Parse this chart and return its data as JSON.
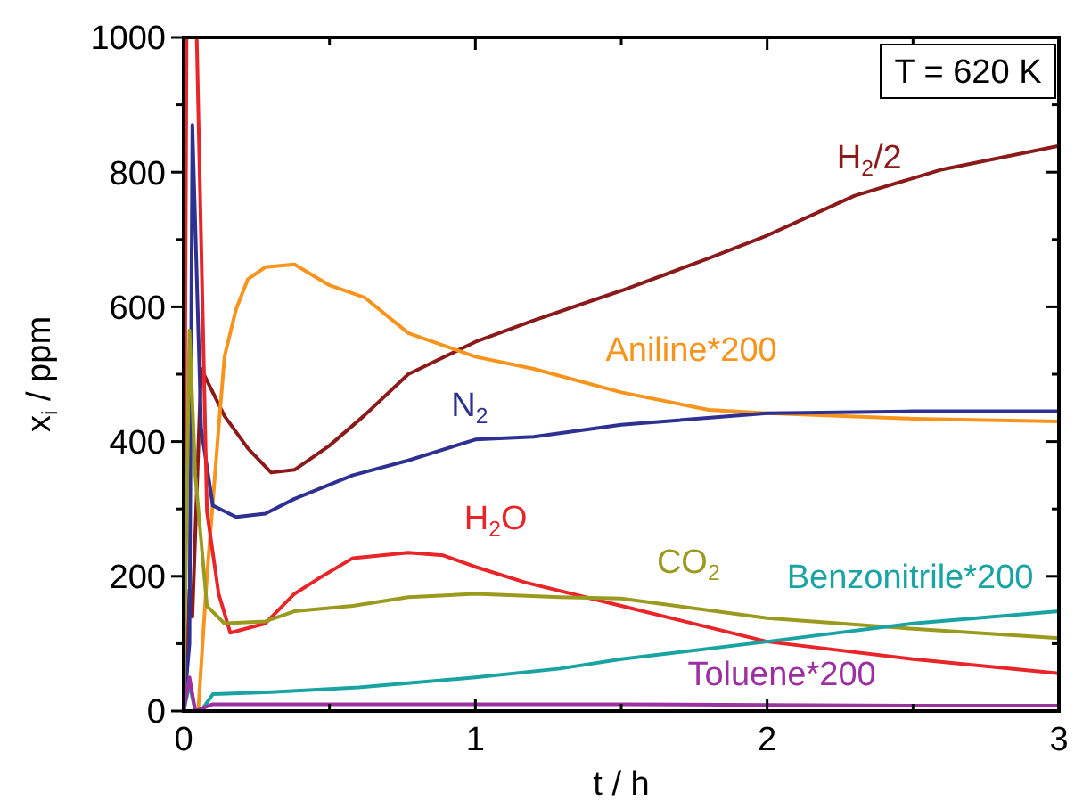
{
  "chart_data": {
    "type": "line",
    "xlabel": "t / h",
    "ylabel": "x$_{i}$ / ppm",
    "xlim": [
      0,
      3
    ],
    "xticks": [
      0,
      {
        "value": 0.5,
        "label": null
      },
      1,
      {
        "value": 1.5,
        "label": null
      },
      2,
      {
        "value": 2.5,
        "label": null
      },
      3
    ],
    "ylim": [
      0,
      1000
    ],
    "yticks": [
      0,
      {
        "value": 100,
        "label": null
      },
      200,
      {
        "value": 300,
        "label": null
      },
      400,
      {
        "value": 500,
        "label": null
      },
      600,
      {
        "value": 700,
        "label": null
      },
      800,
      {
        "value": 900,
        "label": null
      },
      1000
    ],
    "grid": false,
    "marker": "none",
    "line_style": "solid",
    "annotations": [
      "T = 620 K"
    ],
    "series": [
      {
        "name": "H$_{2}$/2",
        "color": "#8b1a1a",
        "x": [
          0,
          0.01,
          0.02,
          0.03,
          0.06,
          0.14,
          0.22,
          0.3,
          0.38,
          0.5,
          0.62,
          0.77,
          1.0,
          1.2,
          1.5,
          1.8,
          2.0,
          2.3,
          2.6,
          3.0
        ],
        "values": [
          0,
          60,
          180,
          140,
          508,
          438,
          390,
          354,
          358,
          394,
          439,
          500,
          548,
          580,
          624,
          672,
          706,
          765,
          804,
          839
        ]
      },
      {
        "name": "Aniline*200",
        "color": "#f7941d",
        "x": [
          0,
          0.05,
          0.08,
          0.12,
          0.14,
          0.18,
          0.22,
          0.28,
          0.38,
          0.5,
          0.62,
          0.77,
          1.0,
          1.2,
          1.5,
          1.8,
          2.0,
          2.5,
          3.0
        ],
        "values": [
          0,
          0,
          200,
          420,
          526,
          597,
          641,
          659,
          663,
          632,
          614,
          561,
          526,
          508,
          473,
          447,
          442,
          434,
          430
        ]
      },
      {
        "name": "N$_{2}$",
        "color": "#2e3192",
        "x": [
          0,
          0.02,
          0.03,
          0.06,
          0.1,
          0.18,
          0.28,
          0.38,
          0.58,
          0.77,
          1.0,
          1.2,
          1.5,
          2.0,
          2.5,
          3.0
        ],
        "values": [
          0,
          100,
          870,
          420,
          305,
          288,
          293,
          315,
          350,
          372,
          403,
          407,
          425,
          442,
          445,
          445
        ]
      },
      {
        "name": "H$_{2}$O",
        "color": "#e8262a",
        "x": [
          0,
          0.01,
          0.045,
          0.08,
          0.12,
          0.16,
          0.28,
          0.38,
          0.46,
          0.58,
          0.77,
          0.89,
          1.0,
          1.17,
          1.5,
          2.0,
          2.5,
          3.0
        ],
        "values": [
          0,
          1000,
          1000,
          296,
          174,
          116,
          130,
          174,
          196,
          227,
          235,
          231,
          214,
          191,
          156,
          103,
          77,
          56
        ]
      },
      {
        "name": "CO$_{2}$",
        "color": "#9a9a1e",
        "x": [
          0,
          0.02,
          0.04,
          0.08,
          0.14,
          0.28,
          0.38,
          0.58,
          0.77,
          1.0,
          1.29,
          1.5,
          2.0,
          2.5,
          3.0
        ],
        "values": [
          0,
          565,
          350,
          156,
          130,
          133,
          148,
          156,
          169,
          174,
          169,
          167,
          138,
          122,
          108
        ]
      },
      {
        "name": "Benzonitrile*200",
        "color": "#1aa3a3",
        "x": [
          0,
          0.02,
          0.04,
          0.06,
          0.1,
          0.3,
          0.6,
          1.0,
          1.29,
          1.5,
          2.0,
          2.5,
          3.0
        ],
        "values": [
          0,
          40,
          0,
          0,
          25,
          28,
          35,
          50,
          63,
          77,
          103,
          130,
          148
        ]
      },
      {
        "name": "Toluene*200",
        "color": "#9b30a0",
        "x": [
          0,
          0.02,
          0.04,
          0.1,
          0.5,
          1.0,
          1.5,
          2.0,
          2.5,
          3.0
        ],
        "values": [
          0,
          50,
          0,
          10,
          10,
          10,
          10,
          9,
          8,
          8
        ]
      }
    ]
  }
}
